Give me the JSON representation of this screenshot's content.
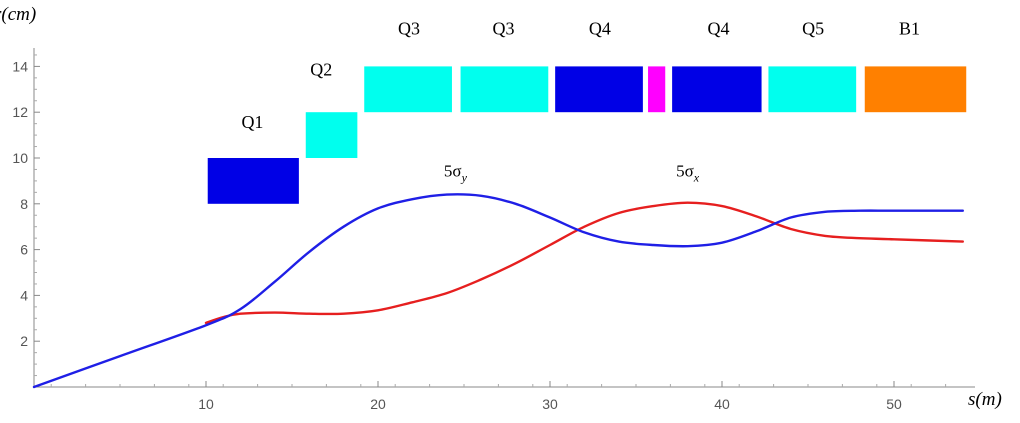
{
  "chart_data": {
    "type": "line",
    "xlabel": "s(m)",
    "ylabel": "r(cm)",
    "xlim": [
      0,
      54
    ],
    "ylim": [
      0,
      15
    ],
    "x_ticks": [
      10,
      20,
      30,
      40,
      50
    ],
    "y_ticks": [
      2,
      4,
      6,
      8,
      10,
      12,
      14
    ],
    "series": [
      {
        "label_main": "5σ",
        "label_sub": "y",
        "label_at": [
          24.5,
          9.2
        ],
        "color": "#1f1fe6",
        "points": [
          [
            0,
            0
          ],
          [
            5,
            1.35
          ],
          [
            10,
            2.7
          ],
          [
            12,
            3.4
          ],
          [
            14,
            4.6
          ],
          [
            16,
            5.9
          ],
          [
            18,
            7.0
          ],
          [
            20,
            7.8
          ],
          [
            22,
            8.2
          ],
          [
            24,
            8.4
          ],
          [
            26,
            8.35
          ],
          [
            28,
            8.0
          ],
          [
            30,
            7.4
          ],
          [
            32,
            6.75
          ],
          [
            34,
            6.35
          ],
          [
            36,
            6.2
          ],
          [
            38,
            6.15
          ],
          [
            40,
            6.3
          ],
          [
            42,
            6.8
          ],
          [
            44,
            7.4
          ],
          [
            46,
            7.65
          ],
          [
            48,
            7.7
          ],
          [
            50,
            7.7
          ],
          [
            54,
            7.7
          ]
        ]
      },
      {
        "label_main": "5σ",
        "label_sub": "x",
        "label_at": [
          38,
          9.2
        ],
        "color": "#e61f1f",
        "points": [
          [
            10,
            2.8
          ],
          [
            11,
            3.05
          ],
          [
            12,
            3.2
          ],
          [
            14,
            3.25
          ],
          [
            16,
            3.2
          ],
          [
            18,
            3.2
          ],
          [
            20,
            3.35
          ],
          [
            22,
            3.7
          ],
          [
            24,
            4.1
          ],
          [
            26,
            4.7
          ],
          [
            28,
            5.4
          ],
          [
            30,
            6.2
          ],
          [
            32,
            7.0
          ],
          [
            34,
            7.6
          ],
          [
            36,
            7.9
          ],
          [
            38,
            8.05
          ],
          [
            40,
            7.9
          ],
          [
            42,
            7.45
          ],
          [
            44,
            6.9
          ],
          [
            46,
            6.6
          ],
          [
            48,
            6.5
          ],
          [
            50,
            6.45
          ],
          [
            54,
            6.35
          ]
        ]
      }
    ],
    "magnets": [
      {
        "label": "Q1",
        "x0": 10.1,
        "x1": 15.4,
        "y0": 8,
        "y1": 10,
        "color": "#0000e6",
        "label_at": [
          12.7,
          11.3
        ]
      },
      {
        "label": "Q2",
        "x0": 15.8,
        "x1": 18.8,
        "y0": 10,
        "y1": 12,
        "color": "#00ffee",
        "label_at": [
          16.7,
          13.6
        ]
      },
      {
        "label": "Q3",
        "x0": 19.2,
        "x1": 24.3,
        "y0": 12,
        "y1": 14,
        "color": "#00ffee",
        "label_at": [
          21.8,
          15.4
        ]
      },
      {
        "label": "Q3",
        "x0": 24.8,
        "x1": 29.9,
        "y0": 12,
        "y1": 14,
        "color": "#00ffee",
        "label_at": [
          27.3,
          15.4
        ]
      },
      {
        "label": "Q4",
        "x0": 30.3,
        "x1": 35.4,
        "y0": 12,
        "y1": 14,
        "color": "#0000e6",
        "label_at": [
          32.9,
          15.4
        ]
      },
      {
        "label": "",
        "x0": 35.7,
        "x1": 36.7,
        "y0": 12,
        "y1": 14,
        "color": "#ff00ff",
        "label_at": [
          36.2,
          15.4
        ]
      },
      {
        "label": "Q4",
        "x0": 37.1,
        "x1": 42.3,
        "y0": 12,
        "y1": 14,
        "color": "#0000e6",
        "label_at": [
          39.8,
          15.4
        ]
      },
      {
        "label": "Q5",
        "x0": 42.7,
        "x1": 47.8,
        "y0": 12,
        "y1": 14,
        "color": "#00ffee",
        "label_at": [
          45.3,
          15.4
        ]
      },
      {
        "label": "B1",
        "x0": 48.3,
        "x1": 54.2,
        "y0": 12,
        "y1": 14,
        "color": "#ff8000",
        "label_at": [
          50.9,
          15.4
        ]
      }
    ]
  }
}
